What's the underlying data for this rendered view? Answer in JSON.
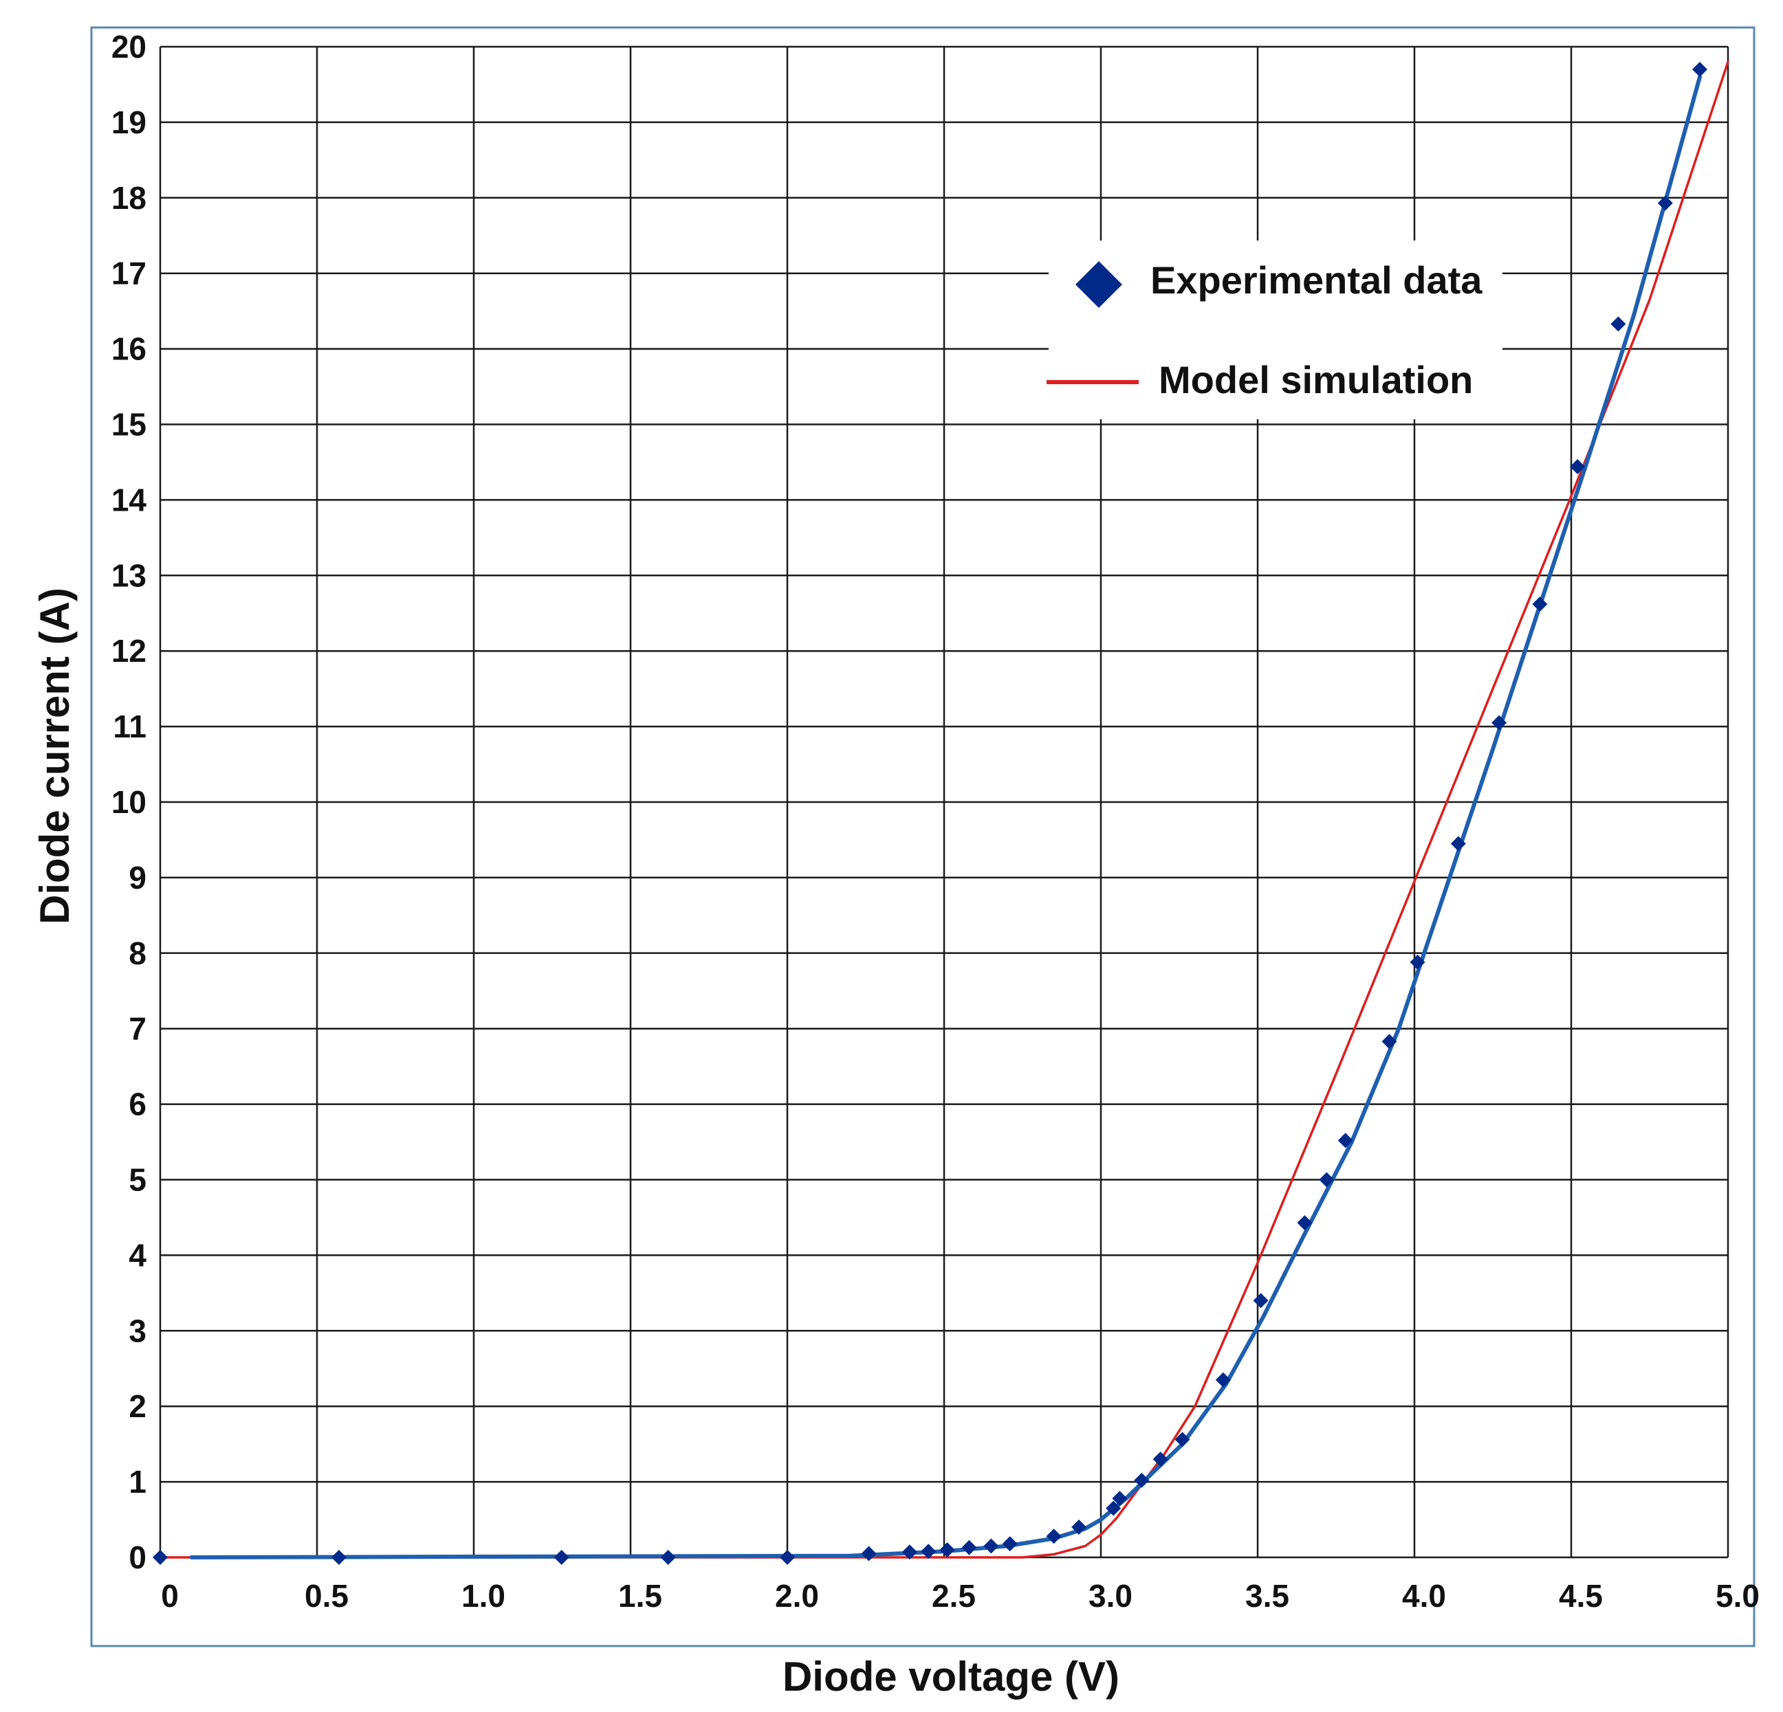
{
  "chart_data": {
    "type": "scatter",
    "xlabel": "Diode voltage (V)",
    "ylabel": "Diode current (A)",
    "xlim": [
      0,
      5.0
    ],
    "ylim": [
      0,
      20
    ],
    "x_ticks": [
      "0",
      "0.5",
      "1.0",
      "1.5",
      "2.0",
      "2.5",
      "3.0",
      "3.5",
      "4.0",
      "4.5",
      "5.0"
    ],
    "y_ticks": [
      "0",
      "1",
      "2",
      "3",
      "4",
      "5",
      "6",
      "7",
      "8",
      "9",
      "10",
      "11",
      "12",
      "13",
      "14",
      "15",
      "16",
      "17",
      "18",
      "19",
      "20"
    ],
    "grid": true,
    "legend_position": "top-right",
    "series": [
      {
        "name": "Experimental data",
        "kind": "markers",
        "marker": "diamond",
        "color": "#002a8a",
        "x": [
          0,
          0.57,
          1.28,
          1.62,
          2.0,
          2.26,
          2.39,
          2.45,
          2.51,
          2.58,
          2.65,
          2.71,
          2.85,
          2.93,
          3.04,
          3.06,
          3.13,
          3.19,
          3.26,
          3.39,
          3.51,
          3.65,
          3.72,
          3.78,
          3.92,
          4.01,
          4.14,
          4.27,
          4.4,
          4.52,
          4.65,
          4.8,
          4.91
        ],
        "y": [
          0,
          0,
          0,
          0,
          0,
          0.05,
          0.07,
          0.08,
          0.1,
          0.13,
          0.15,
          0.18,
          0.28,
          0.4,
          0.65,
          0.78,
          1.02,
          1.3,
          1.56,
          2.35,
          3.4,
          4.43,
          5.0,
          5.52,
          6.83,
          7.88,
          9.45,
          11.05,
          12.62,
          14.44,
          16.33,
          17.93,
          19.7
        ]
      },
      {
        "name": "",
        "kind": "line",
        "color": "#1f5fb0",
        "x": [
          0.1,
          2.2,
          2.5,
          2.7,
          2.85,
          2.95,
          3.0,
          3.08,
          3.16,
          3.26,
          3.4,
          3.52,
          3.64,
          3.8,
          3.95,
          4.1,
          4.25,
          4.4,
          4.55,
          4.7,
          4.91
        ],
        "y": [
          0,
          0.02,
          0.08,
          0.15,
          0.25,
          0.38,
          0.5,
          0.78,
          1.1,
          1.5,
          2.3,
          3.2,
          4.2,
          5.5,
          7.0,
          8.85,
          10.7,
          12.6,
          14.5,
          16.45,
          19.6
        ]
      },
      {
        "name": "Model simulation",
        "kind": "line",
        "color": "#dd1f1f",
        "x": [
          0,
          2.75,
          2.85,
          2.95,
          3.0,
          3.05,
          3.1,
          3.2,
          3.3,
          3.5,
          3.75,
          4.0,
          4.25,
          4.5,
          4.75,
          5.0
        ],
        "y": [
          0,
          0,
          0.04,
          0.15,
          0.3,
          0.52,
          0.8,
          1.35,
          2.0,
          3.9,
          6.4,
          8.95,
          11.5,
          14.05,
          16.65,
          19.8
        ]
      }
    ]
  }
}
